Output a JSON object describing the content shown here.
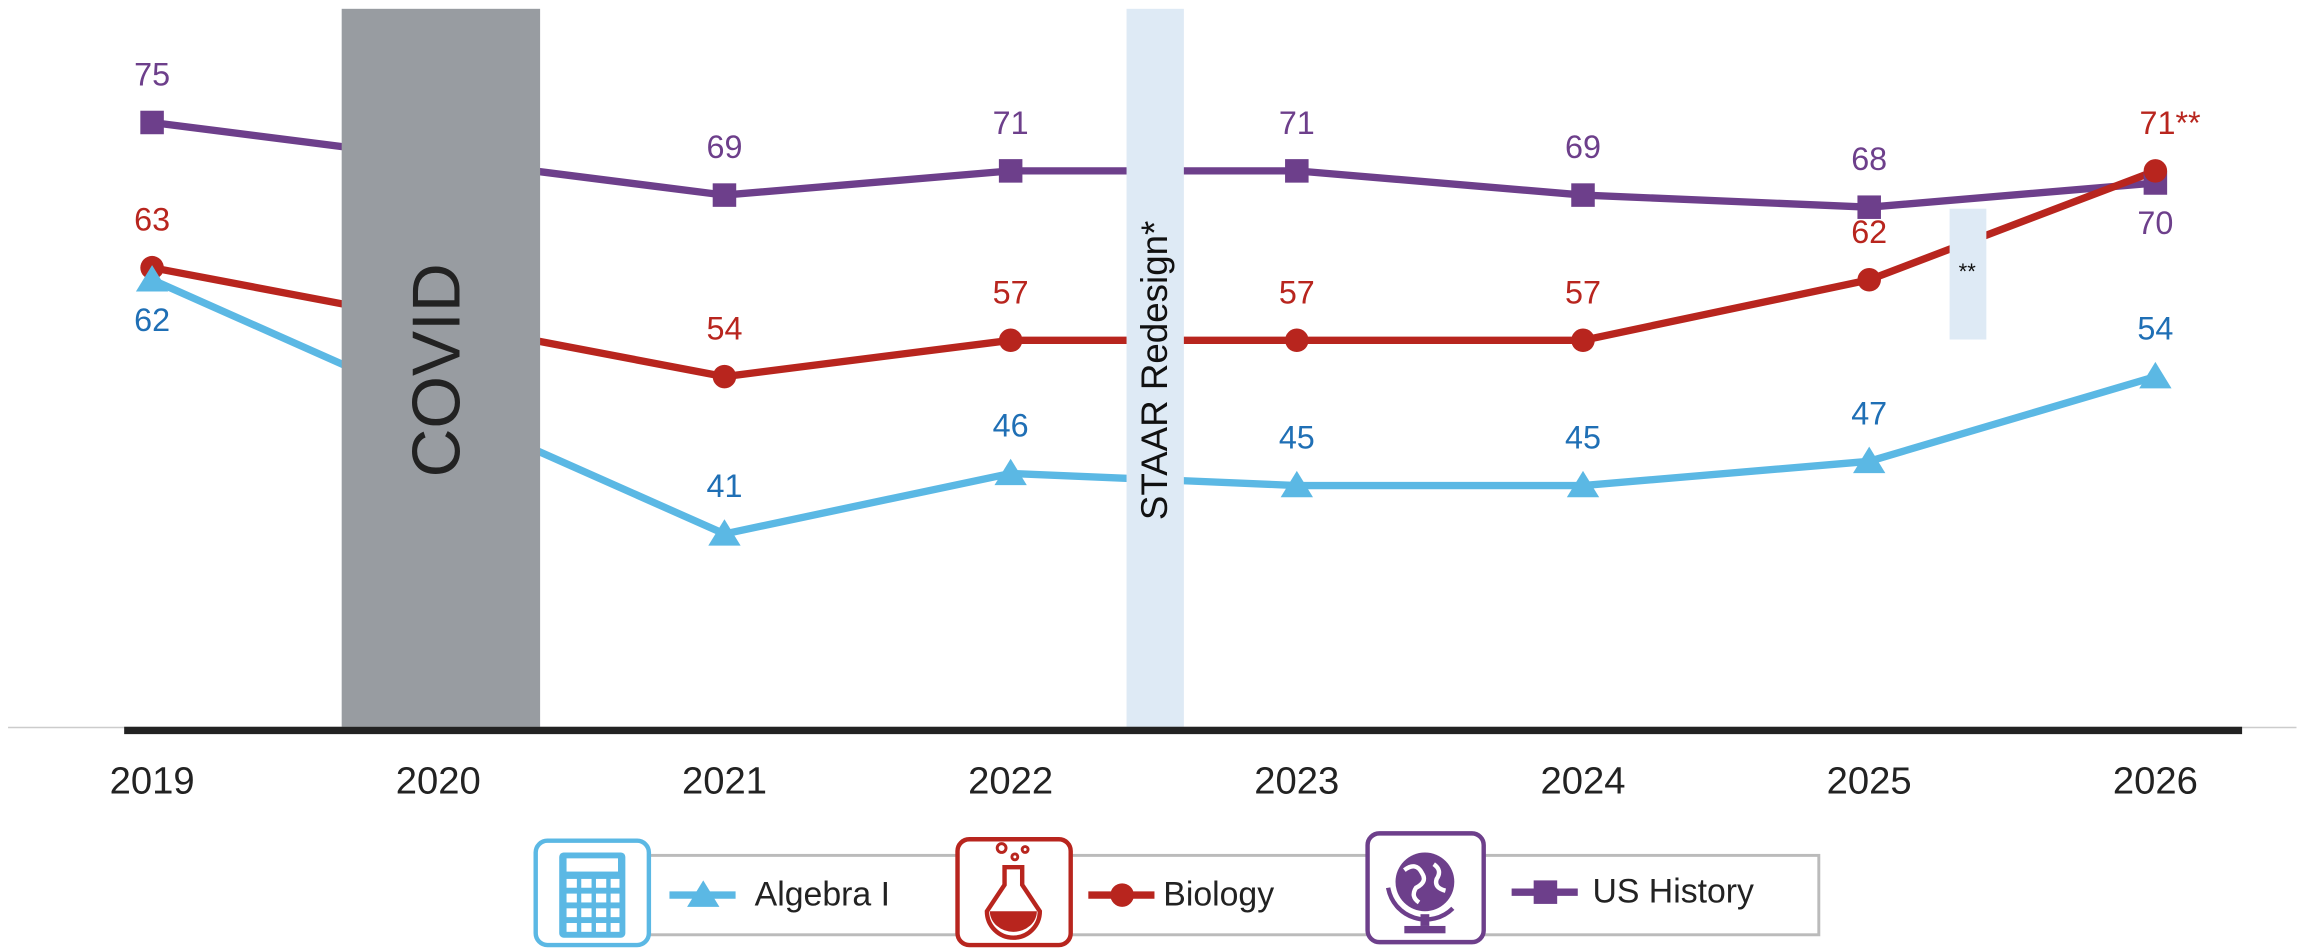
{
  "chart_data": {
    "type": "line",
    "xticks": [
      2019,
      2020,
      2021,
      2022,
      2023,
      2024,
      2025,
      2026
    ],
    "xlim": [
      2018.5,
      2026.5
    ],
    "ylim": [
      25,
      85
    ],
    "annotations": {
      "covid": "COVID",
      "redesign": "STAAR Redesign*",
      "note": "**"
    },
    "series": [
      {
        "name": "Algebra I",
        "color": "#5bb8e4",
        "label_color": "#1f6fb5",
        "marker": "triangle",
        "x": [
          2019,
          2021,
          2022,
          2023,
          2024,
          2025,
          2026
        ],
        "values": [
          62,
          41,
          46,
          45,
          45,
          47,
          54
        ]
      },
      {
        "name": "Biology",
        "color": "#b8251e",
        "label_color": "#b8251e",
        "marker": "circle",
        "x": [
          2019,
          2021,
          2022,
          2023,
          2024,
          2025,
          2026
        ],
        "values": [
          63,
          54,
          57,
          57,
          57,
          62,
          71
        ],
        "value_labels": [
          "63",
          "54",
          "57",
          "57",
          "57",
          "62",
          "71**"
        ]
      },
      {
        "name": "US History",
        "color": "#6d3f8b",
        "label_color": "#6d3f8b",
        "marker": "square",
        "x": [
          2019,
          2021,
          2022,
          2023,
          2024,
          2025,
          2026
        ],
        "values": [
          75,
          69,
          71,
          71,
          69,
          68,
          70
        ]
      }
    ]
  }
}
